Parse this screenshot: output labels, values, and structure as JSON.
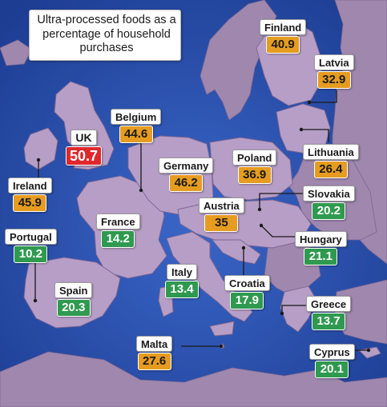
{
  "title": "Ultra-processed foods as a percentage of household purchases",
  "colors": {
    "sea": "#2a4fae",
    "land_highlight": "#b79ec7",
    "land_other": "#9f87ae",
    "value_green": "#2f9a4f",
    "value_orange": "#e59c20",
    "value_red": "#e0272b"
  },
  "countries": [
    {
      "key": "uk",
      "name": "UK",
      "value": "50.7",
      "color": "red"
    },
    {
      "key": "ireland",
      "name": "Ireland",
      "value": "45.9",
      "color": "orange"
    },
    {
      "key": "belgium",
      "name": "Belgium",
      "value": "44.6",
      "color": "orange"
    },
    {
      "key": "germany",
      "name": "Germany",
      "value": "46.2",
      "color": "orange"
    },
    {
      "key": "poland",
      "name": "Poland",
      "value": "36.9",
      "color": "orange"
    },
    {
      "key": "finland",
      "name": "Finland",
      "value": "40.9",
      "color": "orange"
    },
    {
      "key": "latvia",
      "name": "Latvia",
      "value": "32.9",
      "color": "orange"
    },
    {
      "key": "lithuania",
      "name": "Lithuania",
      "value": "26.4",
      "color": "orange"
    },
    {
      "key": "austria",
      "name": "Austria",
      "value": "35",
      "color": "orange"
    },
    {
      "key": "slovakia",
      "name": "Slovakia",
      "value": "20.2",
      "color": "green"
    },
    {
      "key": "france",
      "name": "France",
      "value": "14.2",
      "color": "green"
    },
    {
      "key": "portugal",
      "name": "Portugal",
      "value": "10.2",
      "color": "green"
    },
    {
      "key": "hungary",
      "name": "Hungary",
      "value": "21.1",
      "color": "green"
    },
    {
      "key": "italy",
      "name": "Italy",
      "value": "13.4",
      "color": "green"
    },
    {
      "key": "spain",
      "name": "Spain",
      "value": "20.3",
      "color": "green"
    },
    {
      "key": "croatia",
      "name": "Croatia",
      "value": "17.9",
      "color": "green"
    },
    {
      "key": "greece",
      "name": "Greece",
      "value": "13.7",
      "color": "green"
    },
    {
      "key": "malta",
      "name": "Malta",
      "value": "27.6",
      "color": "orange"
    },
    {
      "key": "cyprus",
      "name": "Cyprus",
      "value": "20.1",
      "color": "green"
    }
  ]
}
